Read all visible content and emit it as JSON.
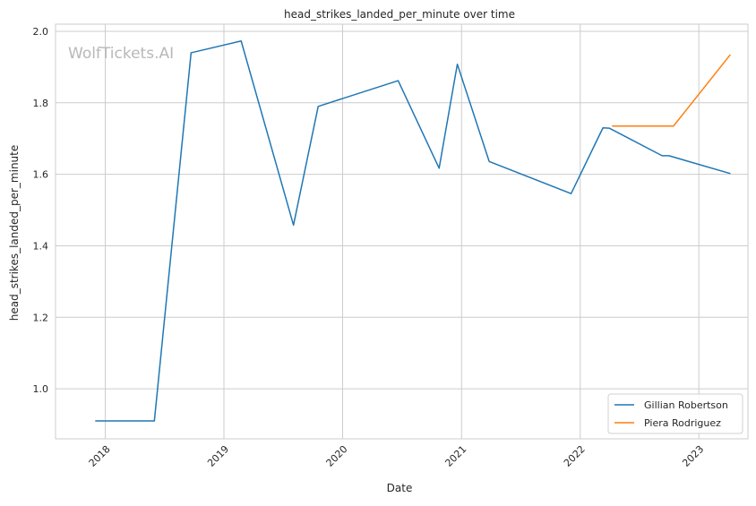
{
  "chart_data": {
    "type": "line",
    "title": "head_strikes_landed_per_minute over time",
    "xlabel": "Date",
    "ylabel": "head_strikes_landed_per_minute",
    "watermark": "WolfTickets.AI",
    "x_scale": "date",
    "xlim": [
      "2017-08-01",
      "2023-06-01"
    ],
    "ylim": [
      0.86,
      2.02
    ],
    "x_ticks": [
      {
        "date": "2018-01-01",
        "label": "2018"
      },
      {
        "date": "2019-01-01",
        "label": "2019"
      },
      {
        "date": "2020-01-01",
        "label": "2020"
      },
      {
        "date": "2021-01-01",
        "label": "2021"
      },
      {
        "date": "2022-01-01",
        "label": "2022"
      },
      {
        "date": "2023-01-01",
        "label": "2023"
      }
    ],
    "y_ticks": [
      {
        "value": 1.0,
        "label": "1.0"
      },
      {
        "value": 1.2,
        "label": "1.2"
      },
      {
        "value": 1.4,
        "label": "1.4"
      },
      {
        "value": 1.6,
        "label": "1.6"
      },
      {
        "value": 1.8,
        "label": "1.8"
      },
      {
        "value": 2.0,
        "label": "2.0"
      }
    ],
    "grid": true,
    "legend_position": "bottom-right",
    "series": [
      {
        "name": "Gillian Robertson",
        "color": "#1f77b4",
        "points": [
          {
            "x": "2017-12-01",
            "y": 0.91
          },
          {
            "x": "2018-06-01",
            "y": 0.91
          },
          {
            "x": "2018-09-22",
            "y": 1.94
          },
          {
            "x": "2019-02-23",
            "y": 1.973
          },
          {
            "x": "2019-08-03",
            "y": 1.458
          },
          {
            "x": "2019-10-18",
            "y": 1.79
          },
          {
            "x": "2020-06-20",
            "y": 1.862
          },
          {
            "x": "2020-10-24",
            "y": 1.617
          },
          {
            "x": "2020-12-19",
            "y": 1.908
          },
          {
            "x": "2021-03-27",
            "y": 1.636
          },
          {
            "x": "2021-12-04",
            "y": 1.546
          },
          {
            "x": "2022-03-12",
            "y": 1.73
          },
          {
            "x": "2022-04-01",
            "y": 1.729
          },
          {
            "x": "2022-09-10",
            "y": 1.652
          },
          {
            "x": "2022-10-01",
            "y": 1.652
          },
          {
            "x": "2023-04-08",
            "y": 1.602
          }
        ]
      },
      {
        "name": "Piera Rodriguez",
        "color": "#ff7f0e",
        "points": [
          {
            "x": "2022-04-09",
            "y": 1.735
          },
          {
            "x": "2022-10-15",
            "y": 1.735
          },
          {
            "x": "2023-04-08",
            "y": 1.935
          }
        ]
      }
    ]
  }
}
